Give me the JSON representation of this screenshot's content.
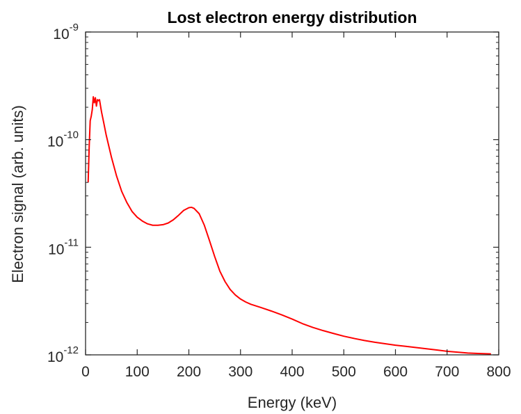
{
  "chart_data": {
    "type": "line",
    "title": "Lost electron energy distribution",
    "xlabel": "Energy (keV)",
    "ylabel": "Electron signal (arb. units)",
    "xlim": [
      0,
      800
    ],
    "ylim": [
      1e-12,
      1e-09
    ],
    "yscale": "log",
    "grid": false,
    "box": true,
    "x_ticks": [
      0,
      100,
      200,
      300,
      400,
      500,
      600,
      700,
      800
    ],
    "x_tick_labels": [
      "0",
      "100",
      "200",
      "300",
      "400",
      "500",
      "600",
      "700",
      "800"
    ],
    "y_ticks": [
      {
        "value": 1e-12,
        "base": "10",
        "exponent": "-12"
      },
      {
        "value": 1e-11,
        "base": "10",
        "exponent": "-11"
      },
      {
        "value": 1e-10,
        "base": "10",
        "exponent": "-10"
      },
      {
        "value": 1e-09,
        "base": "10",
        "exponent": "-9"
      }
    ],
    "series": [
      {
        "color": "#ff0000",
        "x": [
          5,
          7,
          9,
          11,
          13,
          15,
          17,
          19,
          21,
          23,
          25,
          27,
          29,
          31,
          35,
          40,
          50,
          60,
          70,
          80,
          90,
          100,
          110,
          120,
          130,
          140,
          150,
          160,
          170,
          180,
          190,
          200,
          205,
          210,
          220,
          230,
          240,
          250,
          260,
          270,
          280,
          290,
          300,
          310,
          320,
          340,
          360,
          380,
          400,
          420,
          440,
          460,
          480,
          500,
          520,
          540,
          560,
          580,
          600,
          620,
          640,
          660,
          680,
          700,
          720,
          740,
          760,
          785
        ],
        "y": [
          4e-11,
          8.5e-11,
          1.5e-10,
          1.65e-10,
          1.9e-10,
          2.5e-10,
          2.2e-10,
          2.45e-10,
          2.05e-10,
          2.35e-10,
          2.3e-10,
          2.35e-10,
          2.05e-10,
          1.8e-10,
          1.45e-10,
          1.1e-10,
          6.9e-11,
          4.6e-11,
          3.3e-11,
          2.6e-11,
          2.15e-11,
          1.9e-11,
          1.75e-11,
          1.65e-11,
          1.6e-11,
          1.6e-11,
          1.62e-11,
          1.68e-11,
          1.8e-11,
          1.98e-11,
          2.2e-11,
          2.33e-11,
          2.35e-11,
          2.3e-11,
          2.05e-11,
          1.6e-11,
          1.15e-11,
          8.2e-12,
          6e-12,
          4.8e-12,
          4.05e-12,
          3.6e-12,
          3.3e-12,
          3.1e-12,
          2.95e-12,
          2.75e-12,
          2.55e-12,
          2.35e-12,
          2.15e-12,
          1.95e-12,
          1.8e-12,
          1.68e-12,
          1.58e-12,
          1.49e-12,
          1.42e-12,
          1.36e-12,
          1.31e-12,
          1.27e-12,
          1.23e-12,
          1.2e-12,
          1.17e-12,
          1.14e-12,
          1.11e-12,
          1.08e-12,
          1.06e-12,
          1.04e-12,
          1.03e-12,
          1.02e-12
        ]
      }
    ]
  }
}
